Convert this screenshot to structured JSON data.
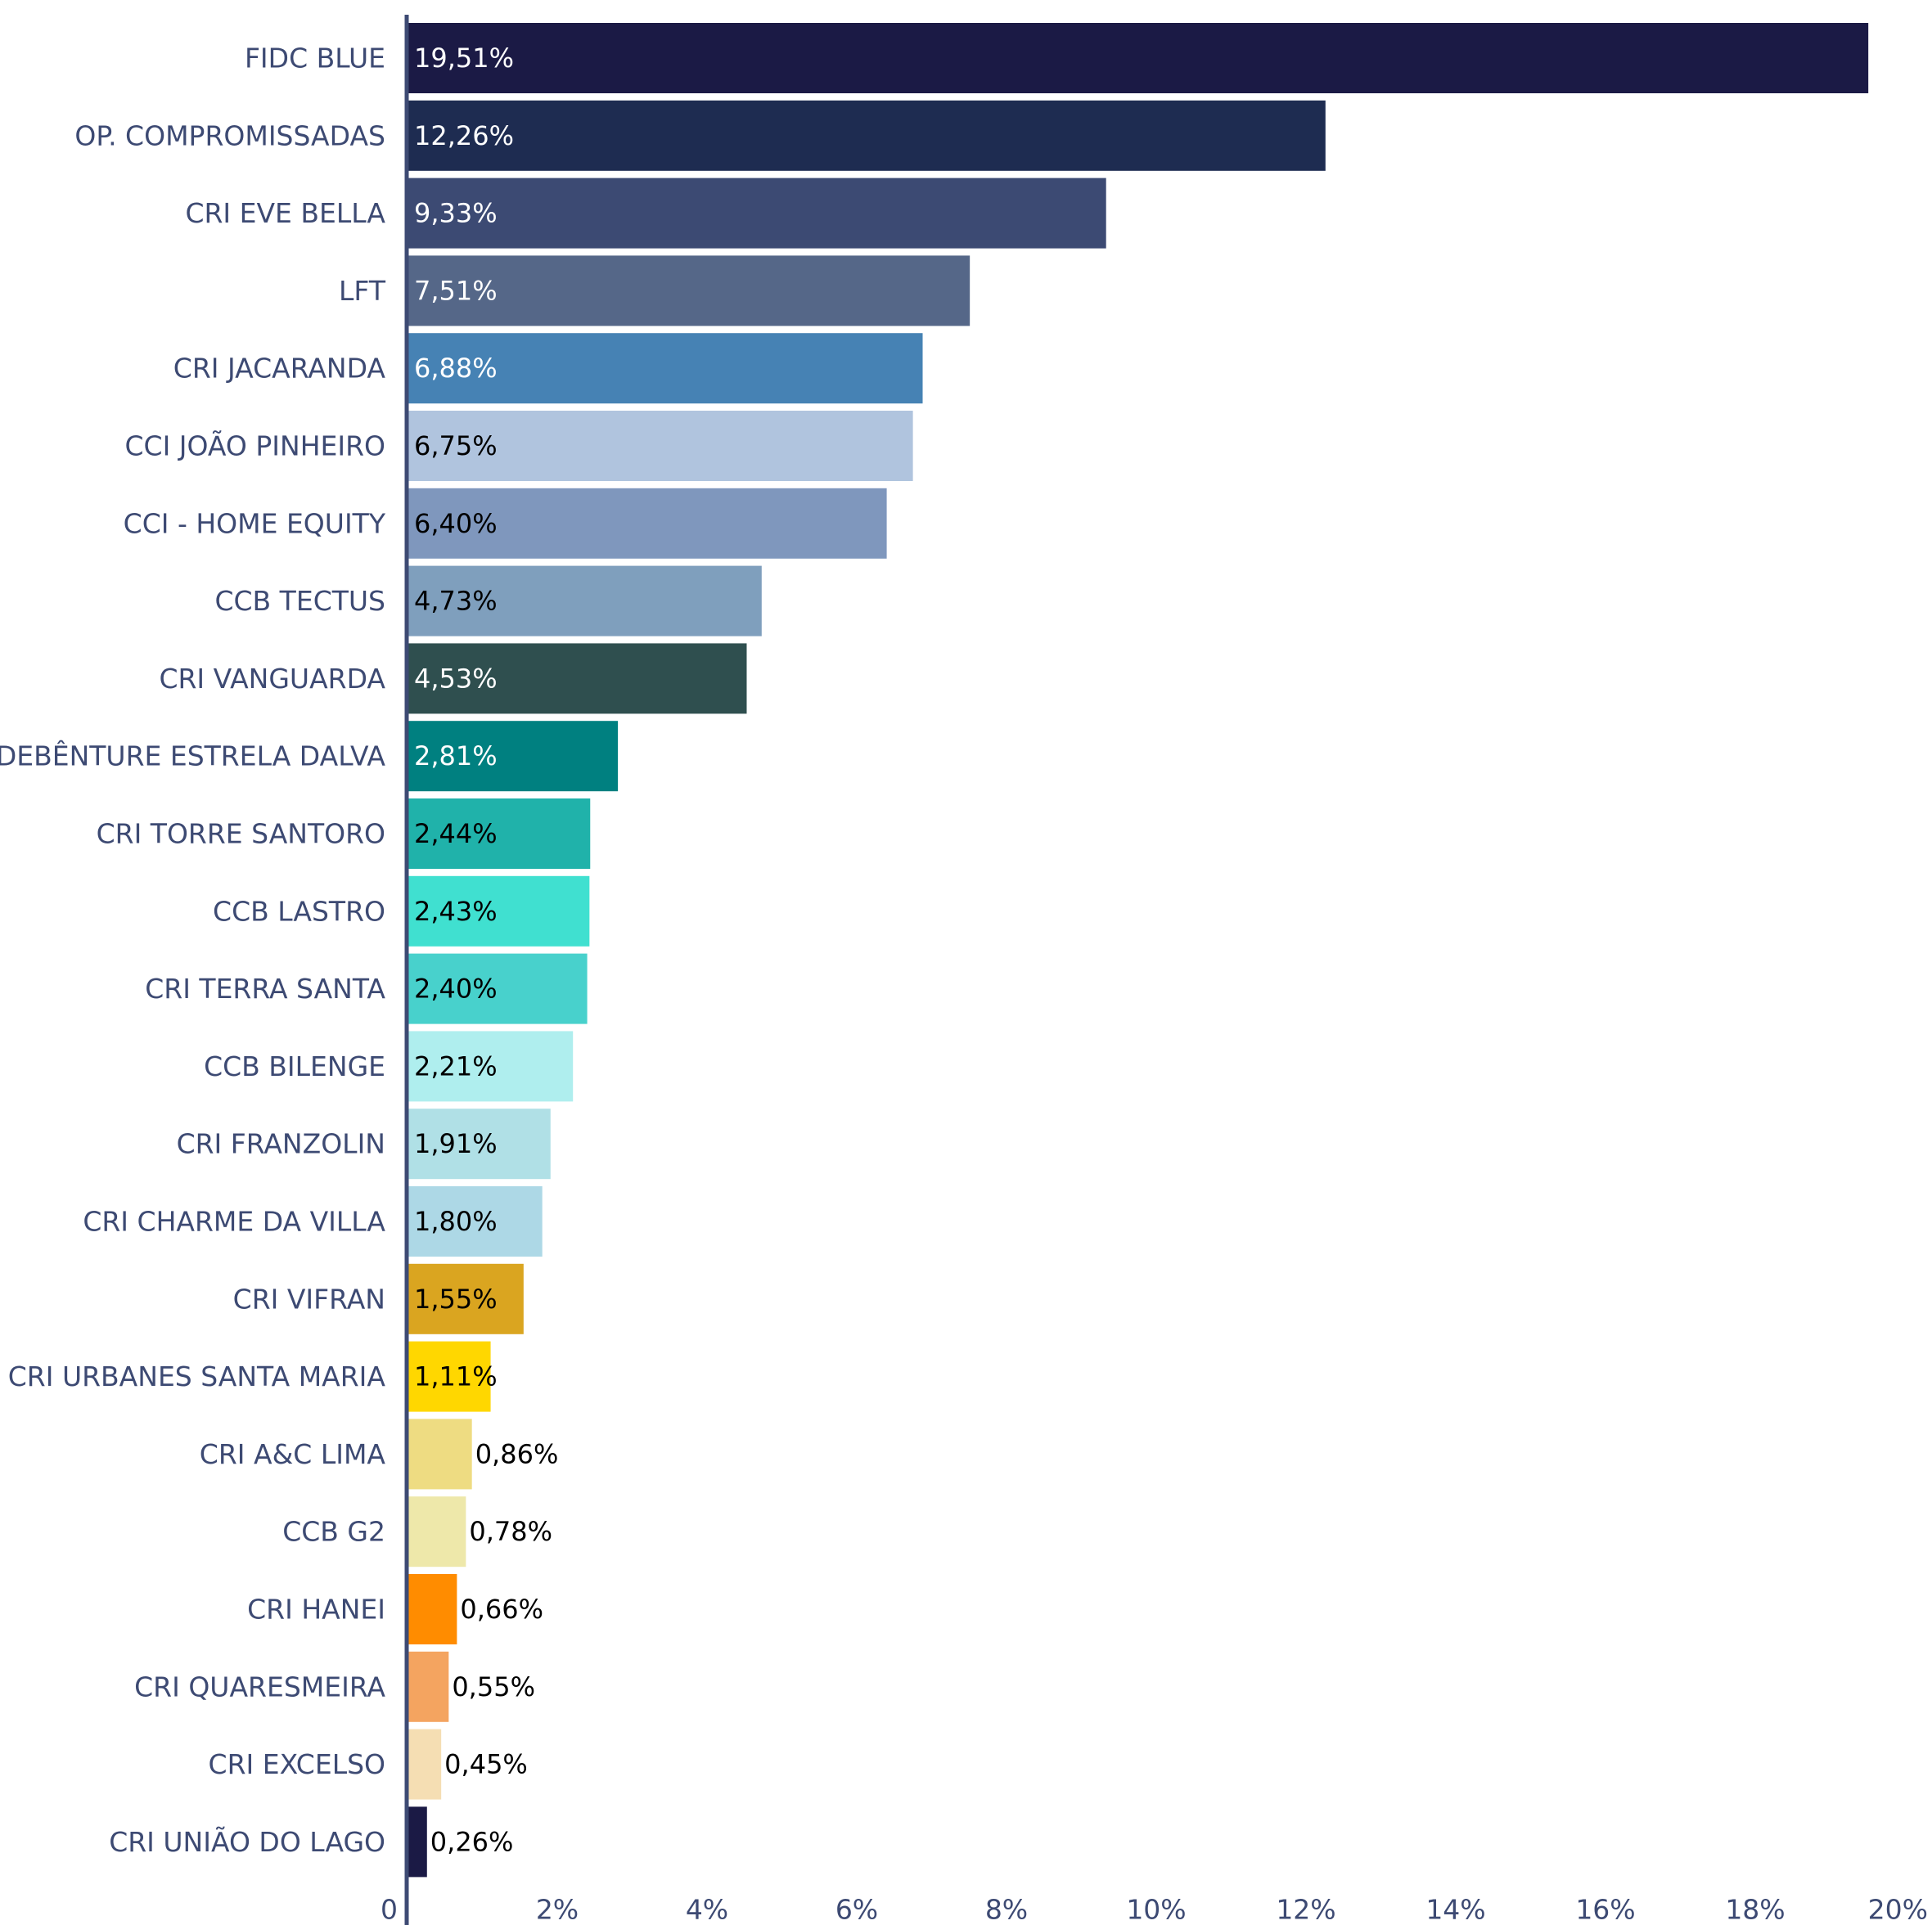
{
  "chart_data": {
    "type": "bar",
    "orientation": "horizontal",
    "title": "",
    "xlabel": "",
    "ylabel": "",
    "xlim": [
      0,
      20
    ],
    "x_ticks": [
      "0",
      "2%",
      "4%",
      "6%",
      "8%",
      "10%",
      "12%",
      "14%",
      "16%",
      "18%",
      "20%"
    ],
    "grid": false,
    "legend": "none",
    "axis_color": "#3d4a73",
    "label_color": "#3d4a73",
    "bars": [
      {
        "category": "FIDC BLUE",
        "value": 19.51,
        "label": "19,51%",
        "color": "#1b1a45",
        "label_color": "#ffffff"
      },
      {
        "category": "OP. COMPROMISSADAS",
        "value": 12.26,
        "label": "12,26%",
        "color": "#1e2c51",
        "label_color": "#ffffff"
      },
      {
        "category": "CRI EVE BELLA",
        "value": 9.33,
        "label": "9,33%",
        "color": "#3c4a73",
        "label_color": "#ffffff"
      },
      {
        "category": "LFT",
        "value": 7.51,
        "label": "7,51%",
        "color": "#556788",
        "label_color": "#ffffff"
      },
      {
        "category": "CRI JACARANDA",
        "value": 6.88,
        "label": "6,88%",
        "color": "#4682b4",
        "label_color": "#ffffff"
      },
      {
        "category": "CCI JOÃO PINHEIRO",
        "value": 6.75,
        "label": "6,75%",
        "color": "#b0c4de",
        "label_color": "#000000"
      },
      {
        "category": "CCI - HOME EQUITY",
        "value": 6.4,
        "label": "6,40%",
        "color": "#7f97bd",
        "label_color": "#000000"
      },
      {
        "category": "CCB TECTUS",
        "value": 4.73,
        "label": "4,73%",
        "color": "#7f9fbd",
        "label_color": "#000000"
      },
      {
        "category": "CRI VANGUARDA",
        "value": 4.53,
        "label": "4,53%",
        "color": "#2f4f4f",
        "label_color": "#ffffff"
      },
      {
        "category": "DEBÊNTURE ESTRELA DALVA",
        "value": 2.81,
        "label": "2,81%",
        "color": "#008080",
        "label_color": "#ffffff"
      },
      {
        "category": "CRI TORRE SANTORO",
        "value": 2.44,
        "label": "2,44%",
        "color": "#20b2aa",
        "label_color": "#000000"
      },
      {
        "category": "CCB LASTRO",
        "value": 2.43,
        "label": "2,43%",
        "color": "#40e0d0",
        "label_color": "#000000"
      },
      {
        "category": "CRI TERRA SANTA",
        "value": 2.4,
        "label": "2,40%",
        "color": "#48d1cc",
        "label_color": "#000000"
      },
      {
        "category": "CCB BILENGE",
        "value": 2.21,
        "label": "2,21%",
        "color": "#afeeee",
        "label_color": "#000000"
      },
      {
        "category": "CRI FRANZOLIN",
        "value": 1.91,
        "label": "1,91%",
        "color": "#b0e0e6",
        "label_color": "#000000"
      },
      {
        "category": "CRI CHARME DA VILLA",
        "value": 1.8,
        "label": "1,80%",
        "color": "#add8e6",
        "label_color": "#000000"
      },
      {
        "category": "CRI VIFRAN",
        "value": 1.55,
        "label": "1,55%",
        "color": "#daa520",
        "label_color": "#000000"
      },
      {
        "category": "CRI URBANES SANTA MARIA",
        "value": 1.11,
        "label": "1,11%",
        "color": "#ffd700",
        "label_color": "#000000"
      },
      {
        "category": "CRI A&C LIMA",
        "value": 0.86,
        "label": "0,86%",
        "color": "#eedc82",
        "label_color": "#000000"
      },
      {
        "category": "CCB G2",
        "value": 0.78,
        "label": "0,78%",
        "color": "#eee8aa",
        "label_color": "#000000"
      },
      {
        "category": "CRI HANEI",
        "value": 0.66,
        "label": "0,66%",
        "color": "#ff8c00",
        "label_color": "#000000"
      },
      {
        "category": "CRI QUARESMEIRA",
        "value": 0.55,
        "label": "0,55%",
        "color": "#f4a460",
        "label_color": "#000000"
      },
      {
        "category": "CRI EXCELSO",
        "value": 0.45,
        "label": "0,45%",
        "color": "#f5deb3",
        "label_color": "#000000"
      },
      {
        "category": "CRI UNIÃO DO LAGO",
        "value": 0.26,
        "label": "0,26%",
        "color": "#1b1a45",
        "label_color": "#000000"
      }
    ]
  }
}
